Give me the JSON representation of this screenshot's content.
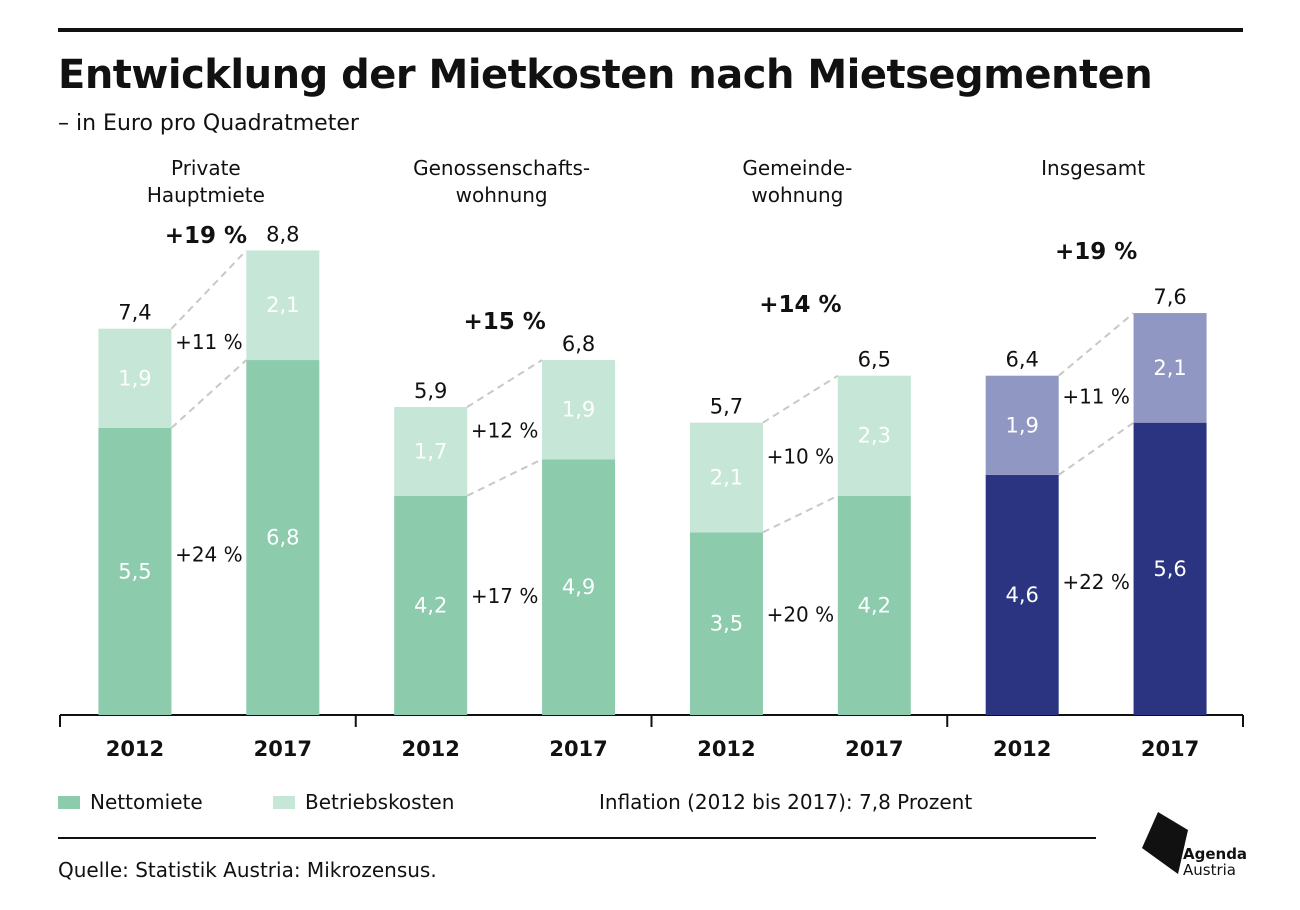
{
  "title": "Entwicklung der Mietkosten nach Mietsegmenten",
  "subtitle": "– in Euro pro Quadratmeter",
  "legend": {
    "net_label": "Nettomiete",
    "op_label": "Betriebskosten",
    "inflation_note": "Inflation (2012 bis 2017): 7,8 Prozent"
  },
  "source": "Quelle: Statistik Austria: Mikrozensus.",
  "logo": {
    "line1": "Agenda",
    "line2": "Austria"
  },
  "colors": {
    "green_net": "#8dcbad",
    "green_op": "#c6e6d7",
    "navy_net": "#2a3480",
    "navy_op": "#9097c2",
    "connector": "#c8c8c8"
  },
  "chart_data": {
    "type": "bar",
    "stacked": true,
    "unit": "Euro pro Quadratmeter",
    "ylim": [
      0,
      9.5
    ],
    "grid": false,
    "groups": [
      {
        "name": [
          "Private",
          "Hauptmiete"
        ],
        "categories": [
          "2012",
          "2017"
        ],
        "series": [
          {
            "name": "Nettomiete",
            "values": [
              5.5,
              6.8
            ],
            "labels": [
              "5,5",
              "6,8"
            ]
          },
          {
            "name": "Betriebskosten",
            "values": [
              1.9,
              2.1
            ],
            "labels": [
              "1,9",
              "2,1"
            ]
          }
        ],
        "totals": [
          7.4,
          8.8
        ],
        "total_labels": [
          "7,4",
          "8,8"
        ],
        "change_total": "+19 %",
        "change_op": "+11 %",
        "change_net": "+24 %"
      },
      {
        "name": [
          "Genossenschafts-",
          "wohnung"
        ],
        "categories": [
          "2012",
          "2017"
        ],
        "series": [
          {
            "name": "Nettomiete",
            "values": [
              4.2,
              4.9
            ],
            "labels": [
              "4,2",
              "4,9"
            ]
          },
          {
            "name": "Betriebskosten",
            "values": [
              1.7,
              1.9
            ],
            "labels": [
              "1,7",
              "1,9"
            ]
          }
        ],
        "totals": [
          5.9,
          6.8
        ],
        "total_labels": [
          "5,9",
          "6,8"
        ],
        "change_total": "+15 %",
        "change_op": "+12 %",
        "change_net": "+17 %"
      },
      {
        "name": [
          "Gemeinde-",
          "wohnung"
        ],
        "categories": [
          "2012",
          "2017"
        ],
        "series": [
          {
            "name": "Nettomiete",
            "values": [
              3.5,
              4.2
            ],
            "labels": [
              "3,5",
              "4,2"
            ]
          },
          {
            "name": "Betriebskosten",
            "values": [
              2.1,
              2.3
            ],
            "labels": [
              "2,1",
              "2,3"
            ]
          }
        ],
        "totals": [
          5.7,
          6.5
        ],
        "total_labels": [
          "5,7",
          "6,5"
        ],
        "change_total": "+14 %",
        "change_op": "+10 %",
        "change_net": "+20 %"
      },
      {
        "name": [
          "Insgesamt"
        ],
        "categories": [
          "2012",
          "2017"
        ],
        "series": [
          {
            "name": "Nettomiete",
            "values": [
              4.6,
              5.6
            ],
            "labels": [
              "4,6",
              "5,6"
            ]
          },
          {
            "name": "Betriebskosten",
            "values": [
              1.9,
              2.1
            ],
            "labels": [
              "1,9",
              "2,1"
            ]
          }
        ],
        "totals": [
          6.4,
          7.6
        ],
        "total_labels": [
          "6,4",
          "7,6"
        ],
        "change_total": "+19 %",
        "change_op": "+11 %",
        "change_net": "+22 %"
      }
    ]
  }
}
